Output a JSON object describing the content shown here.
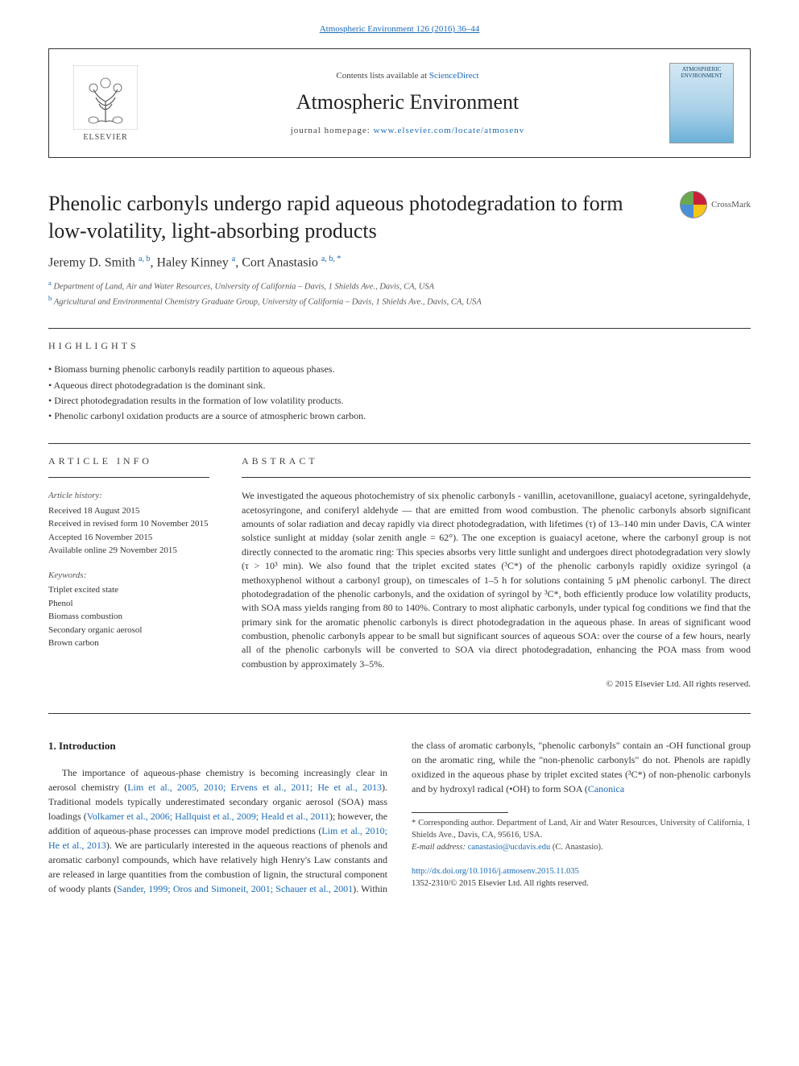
{
  "top_link": "Atmospheric Environment 126 (2016) 36–44",
  "header": {
    "contents_prefix": "Contents lists available at ",
    "contents_link": "ScienceDirect",
    "journal_name": "Atmospheric Environment",
    "homepage_prefix": "journal homepage: ",
    "homepage_link": "www.elsevier.com/locate/atmosenv",
    "cover_title": "ATMOSPHERIC ENVIRONMENT",
    "elsevier_label": "ELSEVIER"
  },
  "crossmark_label": "CrossMark",
  "title": "Phenolic carbonyls undergo rapid aqueous photodegradation to form low-volatility, light-absorbing products",
  "authors_html": "Jeremy D. Smith <sup>a, b</sup>, Haley Kinney <sup>a</sup>, Cort Anastasio <sup>a, b, *</sup>",
  "affiliations": {
    "a": "Department of Land, Air and Water Resources, University of California – Davis, 1 Shields Ave., Davis, CA, USA",
    "b": "Agricultural and Environmental Chemistry Graduate Group, University of California – Davis, 1 Shields Ave., Davis, CA, USA"
  },
  "highlights_heading": "HIGHLIGHTS",
  "highlights": [
    "Biomass burning phenolic carbonyls readily partition to aqueous phases.",
    "Aqueous direct photodegradation is the dominant sink.",
    "Direct photodegradation results in the formation of low volatility products.",
    "Phenolic carbonyl oxidation products are a source of atmospheric brown carbon."
  ],
  "article_info_heading": "ARTICLE INFO",
  "abstract_heading": "ABSTRACT",
  "article_info": {
    "history_label": "Article history:",
    "received": "Received 18 August 2015",
    "revised": "Received in revised form 10 November 2015",
    "accepted": "Accepted 16 November 2015",
    "available": "Available online 29 November 2015",
    "keywords_label": "Keywords:",
    "keywords": [
      "Triplet excited state",
      "Phenol",
      "Biomass combustion",
      "Secondary organic aerosol",
      "Brown carbon"
    ]
  },
  "abstract": "We investigated the aqueous photochemistry of six phenolic carbonyls - vanillin, acetovanillone, guaiacyl acetone, syringaldehyde, acetosyringone, and coniferyl aldehyde — that are emitted from wood combustion. The phenolic carbonyls absorb significant amounts of solar radiation and decay rapidly via direct photodegradation, with lifetimes (τ) of 13–140 min under Davis, CA winter solstice sunlight at midday (solar zenith angle = 62°). The one exception is guaiacyl acetone, where the carbonyl group is not directly connected to the aromatic ring: This species absorbs very little sunlight and undergoes direct photodegradation very slowly (τ > 10³ min). We also found that the triplet excited states (³C*) of the phenolic carbonyls rapidly oxidize syringol (a methoxyphenol without a carbonyl group), on timescales of 1–5 h for solutions containing 5 μM phenolic carbonyl. The direct photodegradation of the phenolic carbonyls, and the oxidation of syringol by ³C*, both efficiently produce low volatility products, with SOA mass yields ranging from 80 to 140%. Contrary to most aliphatic carbonyls, under typical fog conditions we find that the primary sink for the aromatic phenolic carbonyls is direct photodegradation in the aqueous phase. In areas of significant wood combustion, phenolic carbonyls appear to be small but significant sources of aqueous SOA: over the course of a few hours, nearly all of the phenolic carbonyls will be converted to SOA via direct photodegradation, enhancing the POA mass from wood combustion by approximately 3–5%.",
  "copyright": "© 2015 Elsevier Ltd. All rights reserved.",
  "intro_heading": "1. Introduction",
  "intro_p1_a": "The importance of aqueous-phase chemistry is becoming increasingly clear in aerosol chemistry (",
  "intro_p1_cite1": "Lim et al., 2005, 2010; Ervens et al., 2011; He et al., 2013",
  "intro_p1_b": "). Traditional models typically underestimated secondary organic aerosol (SOA) mass loadings (",
  "intro_p1_cite2": "Volkamer et al., 2006; Hallquist et al., 2009; Heald et al., 2011",
  "intro_p1_c": "); ",
  "intro_p1_d": "however, the addition of aqueous-phase processes can improve model predictions (",
  "intro_p1_cite3": "Lim et al., 2010; He et al., 2013",
  "intro_p1_e": "). We are particularly interested in the aqueous reactions of phenols and aromatic carbonyl compounds, which have relatively high Henry's Law constants and are released in large quantities from the combustion of lignin, the structural component of woody plants (",
  "intro_p1_cite4": "Sander, 1999; Oros and Simoneit, 2001; Schauer et al., 2001",
  "intro_p1_f": "). Within the class of aromatic carbonyls, \"phenolic carbonyls\" contain an -OH functional group on the aromatic ring, while the \"non-phenolic carbonyls\" do not. Phenols are rapidly oxidized in the aqueous phase by triplet excited states (³C*) of non-phenolic carbonyls and by hydroxyl radical (•OH) to form SOA (",
  "intro_p1_cite5": "Canonica",
  "footnote": {
    "corresponding": "* Corresponding author. Department of Land, Air and Water Resources, University of California, 1 Shields Ave., Davis, CA, 95616, USA.",
    "email_label": "E-mail address: ",
    "email": "canastasio@ucdavis.edu",
    "email_suffix": " (C. Anastasio)."
  },
  "doi": {
    "link": "http://dx.doi.org/10.1016/j.atmosenv.2015.11.035",
    "issn_copyright": "1352-2310/© 2015 Elsevier Ltd. All rights reserved."
  },
  "colors": {
    "link": "#1a6bb8",
    "text": "#333333",
    "muted": "#555555",
    "rule": "#333333"
  }
}
